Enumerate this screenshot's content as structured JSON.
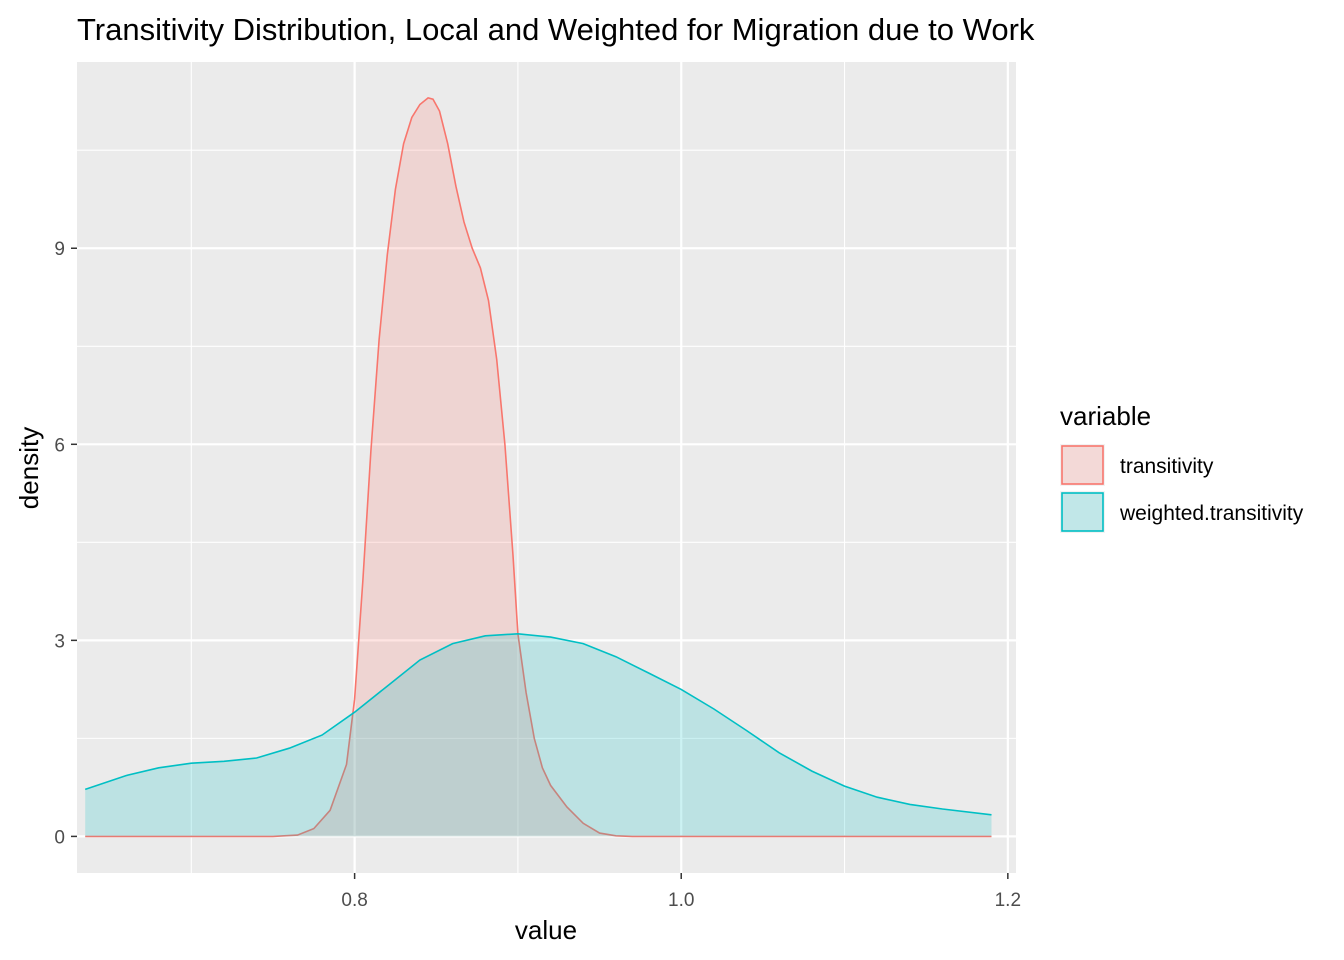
{
  "chart_data": {
    "type": "area",
    "title": "Transitivity Distribution, Local and Weighted for Migration due to Work",
    "xlabel": "value",
    "ylabel": "density",
    "xlim": [
      0.63,
      1.205
    ],
    "ylim": [
      -0.56,
      11.85
    ],
    "x_ticks": [
      0.8,
      1.0,
      1.2
    ],
    "x_tick_labels": [
      "0.8",
      "1.0",
      "1.2"
    ],
    "y_ticks": [
      0,
      3,
      6,
      9
    ],
    "y_tick_labels": [
      "0",
      "3",
      "6",
      "9"
    ],
    "grid": true,
    "legend": {
      "title": "variable",
      "position": "right"
    },
    "series": [
      {
        "name": "transitivity",
        "color": "#F8766D",
        "fill": "#F8766D",
        "x": [
          0.635,
          0.75,
          0.765,
          0.775,
          0.785,
          0.795,
          0.8,
          0.805,
          0.81,
          0.815,
          0.82,
          0.825,
          0.83,
          0.835,
          0.84,
          0.845,
          0.848,
          0.852,
          0.857,
          0.862,
          0.867,
          0.872,
          0.877,
          0.882,
          0.887,
          0.892,
          0.897,
          0.9,
          0.905,
          0.91,
          0.915,
          0.92,
          0.93,
          0.94,
          0.95,
          0.96,
          0.97,
          0.98,
          1.0,
          1.1,
          1.19
        ],
        "y": [
          0,
          0,
          0.02,
          0.12,
          0.4,
          1.1,
          2.1,
          3.9,
          5.9,
          7.6,
          8.9,
          9.9,
          10.6,
          11.0,
          11.2,
          11.3,
          11.28,
          11.1,
          10.6,
          9.95,
          9.4,
          9.0,
          8.7,
          8.2,
          7.3,
          6.0,
          4.3,
          3.1,
          2.2,
          1.5,
          1.05,
          0.78,
          0.45,
          0.2,
          0.05,
          0.01,
          0,
          0,
          0,
          0,
          0
        ]
      },
      {
        "name": "weighted.transitivity",
        "color": "#00BFC4",
        "fill": "#00BFC4",
        "x": [
          0.635,
          0.66,
          0.68,
          0.7,
          0.72,
          0.74,
          0.76,
          0.78,
          0.8,
          0.82,
          0.84,
          0.86,
          0.88,
          0.9,
          0.92,
          0.94,
          0.96,
          0.98,
          1.0,
          1.02,
          1.04,
          1.06,
          1.08,
          1.1,
          1.12,
          1.14,
          1.16,
          1.19
        ],
        "y": [
          0.72,
          0.93,
          1.05,
          1.12,
          1.15,
          1.2,
          1.35,
          1.55,
          1.9,
          2.3,
          2.7,
          2.95,
          3.07,
          3.1,
          3.05,
          2.95,
          2.75,
          2.5,
          2.25,
          1.95,
          1.62,
          1.28,
          1.0,
          0.77,
          0.6,
          0.49,
          0.42,
          0.33
        ]
      }
    ]
  }
}
